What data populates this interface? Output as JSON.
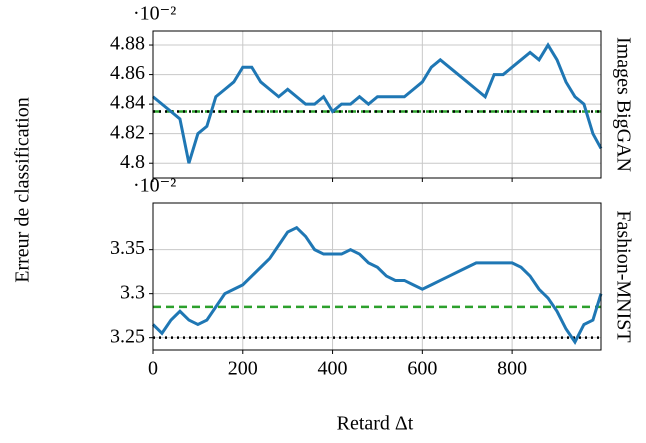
{
  "xlabel": "Retard Δt",
  "ylabel": "Erreur de classification",
  "chart_data": [
    {
      "type": "line",
      "side_label": "Images BigGAN",
      "offset_text": "·10⁻²",
      "xlim": [
        0,
        998
      ],
      "xticks": [
        0,
        200,
        400,
        600,
        800
      ],
      "xtick_labels": false,
      "ylim": [
        4.79,
        4.8895
      ],
      "yticks": [
        4.8,
        4.82,
        4.84,
        4.86,
        4.88
      ],
      "grid": true,
      "hlines": [
        {
          "value": 4.835,
          "color": "#2ca02c",
          "style": "dashed"
        },
        {
          "value": 4.835,
          "color": "#000000",
          "style": "dotted"
        }
      ],
      "series": [
        {
          "color": "#1f77b4",
          "x": [
            0,
            20,
            40,
            60,
            80,
            100,
            120,
            140,
            160,
            180,
            200,
            220,
            240,
            260,
            280,
            300,
            320,
            340,
            360,
            380,
            400,
            420,
            440,
            460,
            480,
            500,
            520,
            540,
            560,
            580,
            600,
            620,
            640,
            660,
            680,
            700,
            720,
            740,
            760,
            780,
            800,
            820,
            840,
            860,
            880,
            900,
            920,
            940,
            960,
            980,
            998
          ],
          "values": [
            4.845,
            4.84,
            4.835,
            4.83,
            4.8,
            4.82,
            4.825,
            4.845,
            4.85,
            4.855,
            4.865,
            4.865,
            4.855,
            4.85,
            4.845,
            4.85,
            4.845,
            4.84,
            4.84,
            4.845,
            4.835,
            4.84,
            4.84,
            4.845,
            4.84,
            4.845,
            4.845,
            4.845,
            4.845,
            4.85,
            4.855,
            4.865,
            4.87,
            4.865,
            4.86,
            4.855,
            4.85,
            4.845,
            4.86,
            4.86,
            4.865,
            4.87,
            4.875,
            4.87,
            4.88,
            4.87,
            4.855,
            4.845,
            4.84,
            4.82,
            4.81
          ]
        }
      ]
    },
    {
      "type": "line",
      "side_label": "Fashion-MNIST",
      "offset_text": "·10⁻²",
      "xlim": [
        0,
        998
      ],
      "xticks": [
        0,
        200,
        400,
        600,
        800
      ],
      "xtick_labels": true,
      "ylim": [
        3.236,
        3.403
      ],
      "yticks": [
        3.25,
        3.3,
        3.35
      ],
      "grid": true,
      "hlines": [
        {
          "value": 3.285,
          "color": "#2ca02c",
          "style": "dashed"
        },
        {
          "value": 3.25,
          "color": "#000000",
          "style": "dotted"
        }
      ],
      "series": [
        {
          "color": "#1f77b4",
          "x": [
            0,
            20,
            40,
            60,
            80,
            100,
            120,
            140,
            160,
            180,
            200,
            220,
            240,
            260,
            280,
            300,
            320,
            340,
            360,
            380,
            400,
            420,
            440,
            460,
            480,
            500,
            520,
            540,
            560,
            580,
            600,
            620,
            640,
            660,
            680,
            700,
            720,
            740,
            760,
            780,
            800,
            820,
            840,
            860,
            880,
            900,
            920,
            940,
            960,
            980,
            998
          ],
          "values": [
            3.265,
            3.255,
            3.27,
            3.28,
            3.27,
            3.265,
            3.27,
            3.285,
            3.3,
            3.305,
            3.31,
            3.32,
            3.33,
            3.34,
            3.355,
            3.37,
            3.375,
            3.365,
            3.35,
            3.345,
            3.345,
            3.345,
            3.35,
            3.345,
            3.335,
            3.33,
            3.32,
            3.315,
            3.315,
            3.31,
            3.305,
            3.31,
            3.315,
            3.32,
            3.325,
            3.33,
            3.335,
            3.335,
            3.335,
            3.335,
            3.335,
            3.33,
            3.32,
            3.305,
            3.295,
            3.28,
            3.26,
            3.245,
            3.265,
            3.27,
            3.3
          ]
        }
      ]
    }
  ]
}
